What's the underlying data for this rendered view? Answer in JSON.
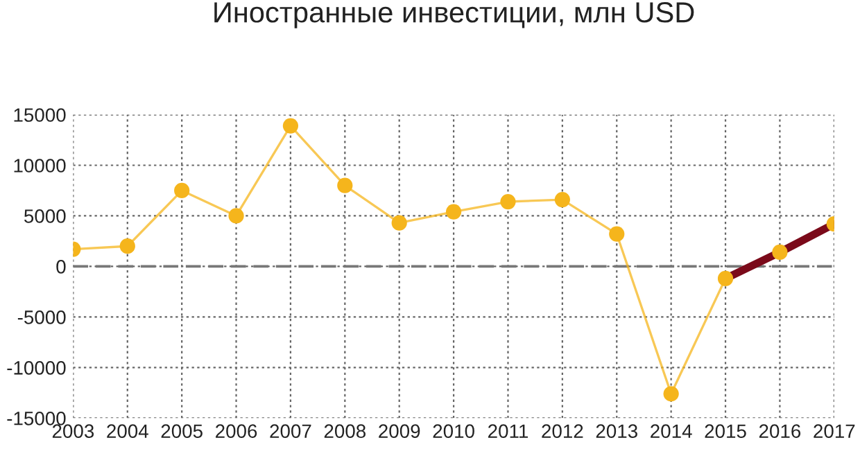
{
  "chart_data": {
    "type": "line",
    "title": "Иностранные инвестиции, млн USD",
    "categories": [
      "2003",
      "2004",
      "2005",
      "2006",
      "2007",
      "2008",
      "2009",
      "2010",
      "2011",
      "2012",
      "2013",
      "2014",
      "2015",
      "2016",
      "2017"
    ],
    "series": [
      {
        "color": "#f5b51c",
        "marker": "circle",
        "values": [
          1700,
          2000,
          7500,
          5000,
          13900,
          8000,
          4300,
          5400,
          6400,
          6600,
          3200,
          -12600,
          -1200,
          1400,
          4200
        ]
      },
      {
        "color": "#7b0a1a",
        "marker": "none",
        "values": [
          null,
          null,
          null,
          null,
          null,
          null,
          null,
          null,
          null,
          null,
          null,
          null,
          -1200,
          1400,
          4200
        ]
      }
    ],
    "ylim": [
      -15000,
      15000
    ],
    "yticks": [
      -15000,
      -10000,
      -5000,
      0,
      5000,
      10000,
      15000
    ],
    "grid": true,
    "ref_lines": [
      {
        "axis": "y",
        "value": 0,
        "color": "#777777",
        "line_style": "dashed"
      }
    ]
  }
}
